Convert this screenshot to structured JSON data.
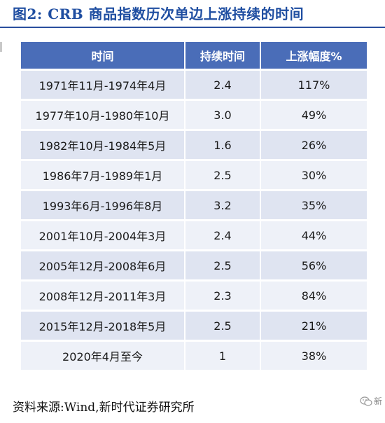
{
  "title": "图2:   CRB 商品指数历次单边上涨持续的时间",
  "table": {
    "headers": [
      "时间",
      "持续时间",
      "上涨幅度%"
    ],
    "rows": [
      [
        "1971年11月-1974年4月",
        "2.4",
        "117%"
      ],
      [
        "1977年10月-1980年10月",
        "3.0",
        "49%"
      ],
      [
        "1982年10月-1984年5月",
        "1.6",
        "26%"
      ],
      [
        "1986年7月-1989年1月",
        "2.5",
        "30%"
      ],
      [
        "1993年6月-1996年8月",
        "3.2",
        "35%"
      ],
      [
        "2001年10月-2004年3月",
        "2.4",
        "44%"
      ],
      [
        "2005年12月-2008年6月",
        "2.5",
        "56%"
      ],
      [
        "2008年12月-2011年3月",
        "2.3",
        "84%"
      ],
      [
        "2015年12月-2018年5月",
        "2.5",
        "21%"
      ],
      [
        "2020年4月至今",
        "1",
        "38%"
      ]
    ]
  },
  "source": "资料来源:Wind,新时代证券研究所",
  "watermark": "新",
  "colors": {
    "title": "#1f4ea1",
    "header_bg": "#4a6db8",
    "row_bg": "#dfe4f1",
    "row_alt_bg": "#eef1f8"
  }
}
